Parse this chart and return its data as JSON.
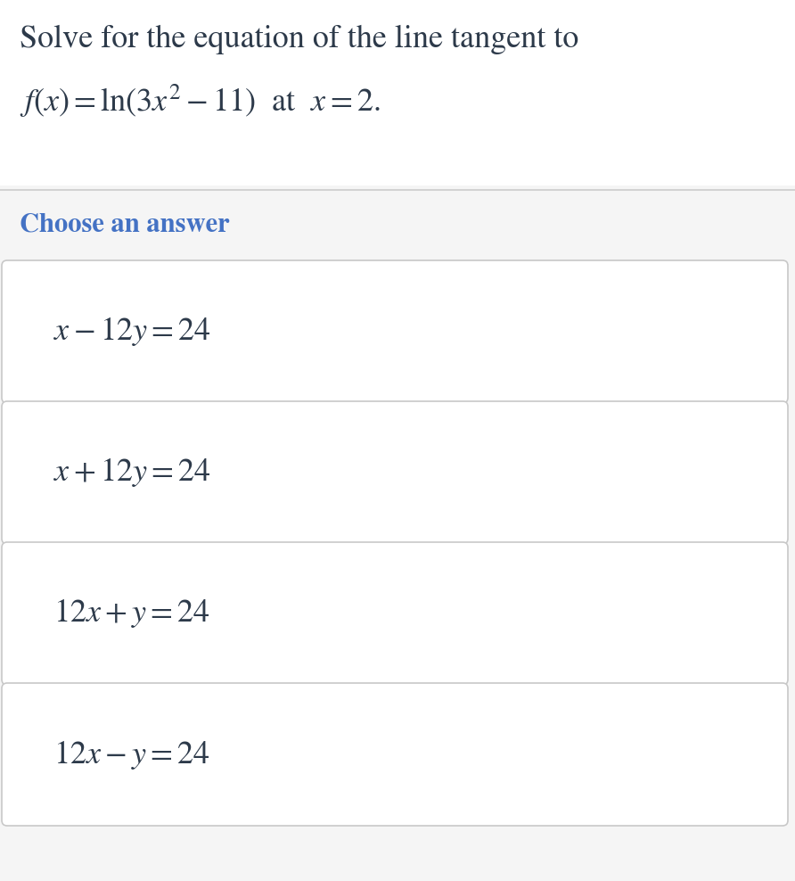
{
  "bg_color": "#f5f5f5",
  "page_bg": "#f5f5f5",
  "question_section_bg": "#ffffff",
  "question_color": "#2d3a4a",
  "question_line1": "Solve for the equation of the line tangent to",
  "question_line2_parts": [
    "$f(x) = \\ln(3x^2 - 11)$",
    " at ",
    "$x = 2$",
    "."
  ],
  "section_label": "Choose an answer",
  "section_label_color": "#4472C4",
  "choices": [
    "$x - 12y = 24$",
    "$x + 12y = 24$",
    "$12x + y = 24$",
    "$12x - y = 24$"
  ],
  "question_fontsize": 26,
  "label_fontsize": 22,
  "choice_fontsize": 26,
  "divider_color": "#cccccc",
  "box_edge_color": "#c8c8c8",
  "box_bg_color": "#ffffff",
  "text_color": "#2d3a4a"
}
